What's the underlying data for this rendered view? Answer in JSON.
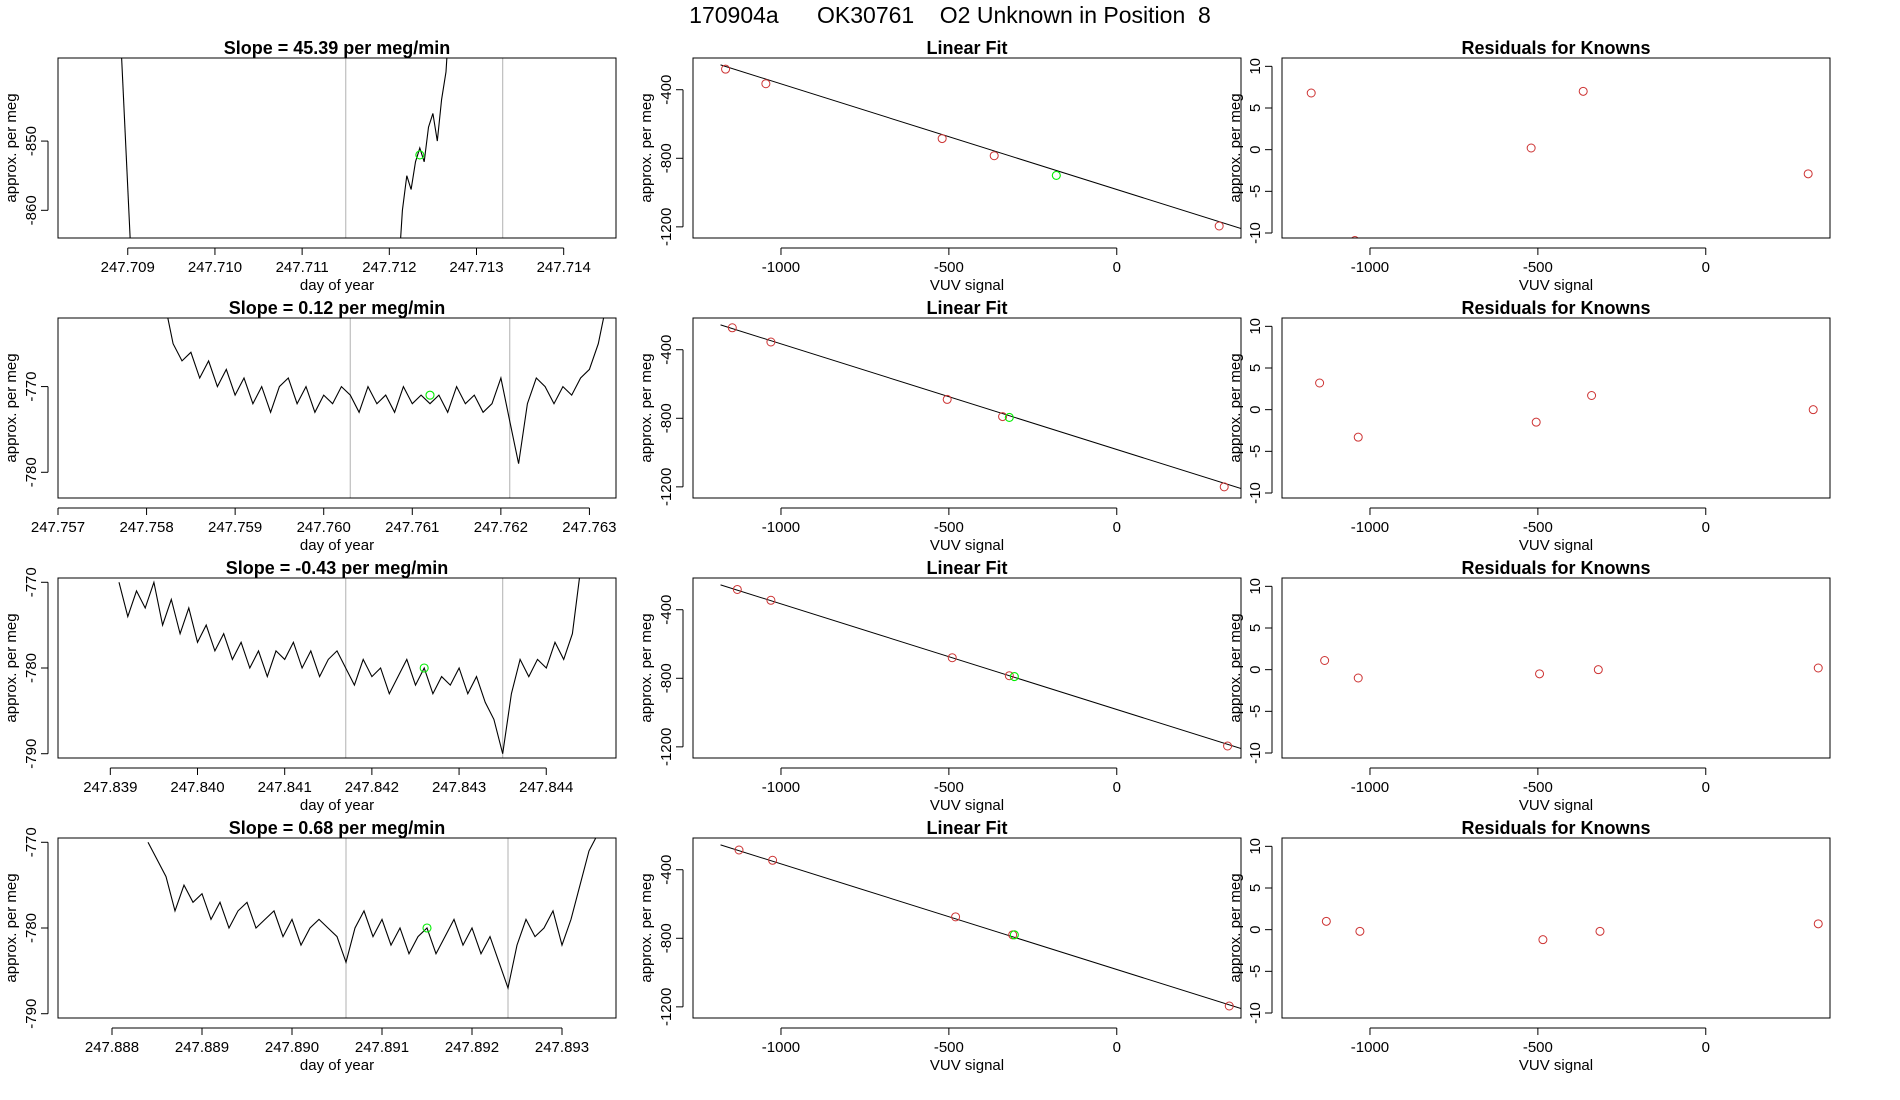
{
  "page": {
    "title": "170904a      OK30761    O2 Unknown in Position  8"
  },
  "colors": {
    "line": "#000000",
    "known": "#cd3333",
    "unknown": "#00ee00",
    "vline": "#bebebe"
  },
  "chart_data": [
    {
      "panel": "time-1",
      "type": "line",
      "title": "Slope =  45.39  per meg/min",
      "xlabel": "day of year",
      "ylabel": "approx. per meg",
      "xlim": [
        247.7082,
        247.7146
      ],
      "ylim": [
        -864,
        -838
      ],
      "xticks": [
        247.709,
        247.71,
        247.711,
        247.712,
        247.713,
        247.714
      ],
      "xtick_labels": [
        "247.709",
        "247.710",
        "247.711",
        "247.712",
        "247.713",
        "247.714"
      ],
      "yticks": [
        -850,
        -860
      ],
      "ytick_labels": [
        "-850",
        "-860"
      ],
      "vlines": [
        247.7115,
        247.7133
      ],
      "series": [
        {
          "x": [
            247.7089,
            247.70905
          ],
          "y": [
            -830,
            -870
          ]
        },
        {
          "x": [
            247.7121,
            247.71215,
            247.7122,
            247.71225,
            247.7123,
            247.71235,
            247.7124,
            247.71245,
            247.7125,
            247.71255,
            247.7126,
            247.71265,
            247.7127
          ],
          "y": [
            -870,
            -860,
            -855,
            -857,
            -853,
            -851,
            -853,
            -848,
            -846,
            -850,
            -844,
            -840,
            -830
          ]
        }
      ],
      "unknown_point": {
        "x": 247.71235,
        "y": -852
      }
    },
    {
      "panel": "fit-1",
      "type": "scatter",
      "title": "Linear Fit",
      "xlabel": "VUV signal",
      "ylabel": "approx. per meg",
      "xlim": [
        -1262,
        370
      ],
      "ylim": [
        -1265,
        -215
      ],
      "xticks": [
        -1000,
        -500,
        0
      ],
      "xtick_labels": [
        "-1000",
        "-500",
        "0"
      ],
      "yticks": [
        -400,
        -800,
        -1200
      ],
      "ytick_labels": [
        "-400",
        "-800",
        "-1200"
      ],
      "fit_line": {
        "x": [
          -1180,
          370
        ],
        "y": [
          -255,
          -1210
        ]
      },
      "known_points": {
        "x": [
          -1165,
          -1045,
          -520,
          -365,
          305
        ],
        "y": [
          -280,
          -365,
          -685,
          -785,
          -1195
        ]
      },
      "unknown_point": {
        "x": -180,
        "y": -900
      }
    },
    {
      "panel": "resid-1",
      "type": "scatter",
      "title": "Residuals for Knowns",
      "xlabel": "VUV signal",
      "ylabel": "approx. per meg",
      "xlim": [
        -1262,
        370
      ],
      "ylim": [
        -10.6,
        11
      ],
      "xticks": [
        -1000,
        -500,
        0
      ],
      "xtick_labels": [
        "-1000",
        "-500",
        "0"
      ],
      "yticks": [
        10,
        5,
        0,
        -5,
        -10
      ],
      "ytick_labels": [
        "10",
        "5",
        "0",
        "-5",
        "-10"
      ],
      "known_points": {
        "x": [
          -1175,
          -1045,
          -520,
          -365,
          305
        ],
        "y": [
          6.8,
          -10.9,
          0.2,
          7.0,
          -2.9
        ]
      }
    },
    {
      "panel": "time-2",
      "type": "line",
      "title": "Slope =  0.12  per meg/min",
      "xlabel": "day of year",
      "ylabel": "approx. per meg",
      "xlim": [
        247.757,
        247.7633
      ],
      "ylim": [
        -783,
        -762
      ],
      "xticks": [
        247.757,
        247.758,
        247.759,
        247.76,
        247.761,
        247.762,
        247.763
      ],
      "xtick_labels": [
        "247.757",
        "247.758",
        "247.759",
        "247.760",
        "247.761",
        "247.762",
        "247.763"
      ],
      "yticks": [
        -770,
        -780
      ],
      "ytick_labels": [
        "-770",
        "-780"
      ],
      "vlines": [
        247.7603,
        247.7621
      ],
      "series": [
        {
          "x": [
            247.7582,
            247.7583,
            247.7584,
            247.7585,
            247.7586,
            247.7587,
            247.7588,
            247.7589,
            247.759,
            247.7591,
            247.7592,
            247.7593,
            247.7594,
            247.7595,
            247.7596,
            247.7597,
            247.7598,
            247.7599,
            247.76,
            247.7601,
            247.7602,
            247.7603,
            247.7604,
            247.7605,
            247.7606,
            247.7607,
            247.7608,
            247.7609,
            247.761,
            247.7611,
            247.7612,
            247.7613,
            247.7614,
            247.7615,
            247.7616,
            247.7617,
            247.7618,
            247.7619,
            247.762,
            247.7621,
            247.7622,
            247.7623,
            247.7624,
            247.7625,
            247.7626,
            247.7627,
            247.7628,
            247.7629,
            247.763,
            247.7631,
            247.7632
          ],
          "y": [
            -760,
            -765,
            -767,
            -766,
            -769,
            -767,
            -770,
            -768,
            -771,
            -769,
            -772,
            -770,
            -773,
            -770,
            -769,
            -772,
            -770,
            -773,
            -771,
            -772,
            -770,
            -771,
            -773,
            -770,
            -772,
            -771,
            -773,
            -770,
            -772,
            -771,
            -772,
            -771,
            -773,
            -770,
            -772,
            -771,
            -773,
            -772,
            -769,
            -774,
            -779,
            -772,
            -769,
            -770,
            -772,
            -770,
            -771,
            -769,
            -768,
            -765,
            -760
          ]
        }
      ],
      "unknown_point": {
        "x": 247.7612,
        "y": -771
      }
    },
    {
      "panel": "fit-2",
      "type": "scatter",
      "title": "Linear Fit",
      "xlabel": "VUV signal",
      "ylabel": "approx. per meg",
      "xlim": [
        -1262,
        370
      ],
      "ylim": [
        -1265,
        -215
      ],
      "xticks": [
        -1000,
        -500,
        0
      ],
      "xtick_labels": [
        "-1000",
        "-500",
        "0"
      ],
      "yticks": [
        -400,
        -800,
        -1200
      ],
      "ytick_labels": [
        "-400",
        "-800",
        "-1200"
      ],
      "fit_line": {
        "x": [
          -1180,
          370
        ],
        "y": [
          -255,
          -1210
        ]
      },
      "known_points": {
        "x": [
          -1145,
          -1030,
          -505,
          -340,
          320
        ],
        "y": [
          -272,
          -355,
          -690,
          -790,
          -1200
        ]
      },
      "unknown_point": {
        "x": -320,
        "y": -795
      }
    },
    {
      "panel": "resid-2",
      "type": "scatter",
      "title": "Residuals for Knowns",
      "xlabel": "VUV signal",
      "ylabel": "approx. per meg",
      "xlim": [
        -1262,
        370
      ],
      "ylim": [
        -10.6,
        11
      ],
      "xticks": [
        -1000,
        -500,
        0
      ],
      "xtick_labels": [
        "-1000",
        "-500",
        "0"
      ],
      "yticks": [
        10,
        5,
        0,
        -5,
        -10
      ],
      "ytick_labels": [
        "10",
        "5",
        "0",
        "-5",
        "-10"
      ],
      "known_points": {
        "x": [
          -1150,
          -1035,
          -505,
          -340,
          320
        ],
        "y": [
          3.2,
          -3.3,
          -1.5,
          1.7,
          0.0
        ]
      }
    },
    {
      "panel": "time-3",
      "type": "line",
      "title": "Slope =  -0.43  per meg/min",
      "xlabel": "day of year",
      "ylabel": "approx. per meg",
      "xlim": [
        247.8384,
        247.8448
      ],
      "ylim": [
        -790.5,
        -769.5
      ],
      "xticks": [
        247.839,
        247.84,
        247.841,
        247.842,
        247.843,
        247.844
      ],
      "xtick_labels": [
        "247.839",
        "247.840",
        "247.841",
        "247.842",
        "247.843",
        "247.844"
      ],
      "yticks": [
        -770,
        -780,
        -790
      ],
      "ytick_labels": [
        "-770",
        "-780",
        "-790"
      ],
      "vlines": [
        247.8417,
        247.8435
      ],
      "series": [
        {
          "x": [
            247.8391,
            247.8392,
            247.8393,
            247.8394,
            247.8395,
            247.8396,
            247.8397,
            247.8398,
            247.8399,
            247.84,
            247.8401,
            247.8402,
            247.8403,
            247.8404,
            247.8405,
            247.8406,
            247.8407,
            247.8408,
            247.8409,
            247.841,
            247.8411,
            247.8412,
            247.8413,
            247.8414,
            247.8415,
            247.8416,
            247.8417,
            247.8418,
            247.8419,
            247.842,
            247.8421,
            247.8422,
            247.8423,
            247.8424,
            247.8425,
            247.8426,
            247.8427,
            247.8428,
            247.8429,
            247.843,
            247.8431,
            247.8432,
            247.8433,
            247.8434,
            247.8435,
            247.8436,
            247.8437,
            247.8438,
            247.8439,
            247.844,
            247.8441,
            247.8442,
            247.8443,
            247.8444
          ],
          "y": [
            -770,
            -774,
            -771,
            -773,
            -770,
            -775,
            -772,
            -776,
            -773,
            -777,
            -775,
            -778,
            -776,
            -779,
            -777,
            -780,
            -778,
            -781,
            -778,
            -779,
            -777,
            -780,
            -778,
            -781,
            -779,
            -778,
            -780,
            -782,
            -779,
            -781,
            -780,
            -783,
            -781,
            -779,
            -782,
            -780,
            -783,
            -781,
            -782,
            -780,
            -783,
            -781,
            -784,
            -786,
            -790,
            -783,
            -779,
            -781,
            -779,
            -780,
            -777,
            -779,
            -776,
            -768
          ]
        }
      ],
      "unknown_point": {
        "x": 247.8426,
        "y": -780
      }
    },
    {
      "panel": "fit-3",
      "type": "scatter",
      "title": "Linear Fit",
      "xlabel": "VUV signal",
      "ylabel": "approx. per meg",
      "xlim": [
        -1262,
        370
      ],
      "ylim": [
        -1265,
        -215
      ],
      "xticks": [
        -1000,
        -500,
        0
      ],
      "xtick_labels": [
        "-1000",
        "-500",
        "0"
      ],
      "yticks": [
        -400,
        -800,
        -1200
      ],
      "ytick_labels": [
        "-400",
        "-800",
        "-1200"
      ],
      "fit_line": {
        "x": [
          -1180,
          370
        ],
        "y": [
          -255,
          -1210
        ]
      },
      "known_points": {
        "x": [
          -1130,
          -1030,
          -490,
          -320,
          330
        ],
        "y": [
          -282,
          -345,
          -680,
          -785,
          -1195
        ]
      },
      "unknown_point": {
        "x": -305,
        "y": -790
      }
    },
    {
      "panel": "resid-3",
      "type": "scatter",
      "title": "Residuals for Knowns",
      "xlabel": "VUV signal",
      "ylabel": "approx. per meg",
      "xlim": [
        -1262,
        370
      ],
      "ylim": [
        -10.6,
        11
      ],
      "xticks": [
        -1000,
        -500,
        0
      ],
      "xtick_labels": [
        "-1000",
        "-500",
        "0"
      ],
      "yticks": [
        10,
        5,
        0,
        -5,
        -10
      ],
      "ytick_labels": [
        "10",
        "5",
        "0",
        "-5",
        "-10"
      ],
      "known_points": {
        "x": [
          -1135,
          -1035,
          -495,
          -320,
          335
        ],
        "y": [
          1.1,
          -1.0,
          -0.5,
          0.0,
          0.2
        ]
      }
    },
    {
      "panel": "time-4",
      "type": "line",
      "title": "Slope =  0.68  per meg/min",
      "xlabel": "day of year",
      "ylabel": "approx. per meg",
      "xlim": [
        247.8874,
        247.8936
      ],
      "ylim": [
        -790.5,
        -769.5
      ],
      "xticks": [
        247.888,
        247.889,
        247.89,
        247.891,
        247.892,
        247.893
      ],
      "xtick_labels": [
        "247.888",
        "247.889",
        "247.890",
        "247.891",
        "247.892",
        "247.893"
      ],
      "yticks": [
        -770,
        -780,
        -790
      ],
      "ytick_labels": [
        "-770",
        "-780",
        "-790"
      ],
      "vlines": [
        247.8906,
        247.8924
      ],
      "series": [
        {
          "x": [
            247.8884,
            247.8885,
            247.8886,
            247.8887,
            247.8888,
            247.8889,
            247.889,
            247.8891,
            247.8892,
            247.8893,
            247.8894,
            247.8895,
            247.8896,
            247.8897,
            247.8898,
            247.8899,
            247.89,
            247.8901,
            247.8902,
            247.8903,
            247.8904,
            247.8905,
            247.8906,
            247.8907,
            247.8908,
            247.8909,
            247.891,
            247.8911,
            247.8912,
            247.8913,
            247.8914,
            247.8915,
            247.8916,
            247.8917,
            247.8918,
            247.8919,
            247.892,
            247.8921,
            247.8922,
            247.8923,
            247.8924,
            247.8925,
            247.8926,
            247.8927,
            247.8928,
            247.8929,
            247.893,
            247.8931,
            247.8932,
            247.8933,
            247.8934
          ],
          "y": [
            -770,
            -772,
            -774,
            -778,
            -775,
            -777,
            -776,
            -779,
            -777,
            -780,
            -778,
            -777,
            -780,
            -779,
            -778,
            -781,
            -779,
            -782,
            -780,
            -779,
            -780,
            -781,
            -784,
            -780,
            -778,
            -781,
            -779,
            -782,
            -780,
            -783,
            -781,
            -780,
            -783,
            -781,
            -779,
            -782,
            -780,
            -783,
            -781,
            -784,
            -787,
            -782,
            -779,
            -781,
            -780,
            -778,
            -782,
            -779,
            -775,
            -771,
            -769
          ]
        }
      ],
      "unknown_point": {
        "x": 247.8915,
        "y": -780
      }
    },
    {
      "panel": "fit-4",
      "type": "scatter",
      "title": "Linear Fit",
      "xlabel": "VUV signal",
      "ylabel": "approx. per meg",
      "xlim": [
        -1262,
        370
      ],
      "ylim": [
        -1265,
        -215
      ],
      "xticks": [
        -1000,
        -500,
        0
      ],
      "xtick_labels": [
        "-1000",
        "-500",
        "0"
      ],
      "yticks": [
        -400,
        -800,
        -1200
      ],
      "ytick_labels": [
        "-400",
        "-800",
        "-1200"
      ],
      "fit_line": {
        "x": [
          -1180,
          370
        ],
        "y": [
          -255,
          -1210
        ]
      },
      "known_points": {
        "x": [
          -1125,
          -1025,
          -480,
          -310,
          335
        ],
        "y": [
          -285,
          -345,
          -675,
          -780,
          -1195
        ]
      },
      "unknown_point": {
        "x": -305,
        "y": -780
      }
    },
    {
      "panel": "resid-4",
      "type": "scatter",
      "title": "Residuals for Knowns",
      "xlabel": "VUV signal",
      "ylabel": "approx. per meg",
      "xlim": [
        -1262,
        370
      ],
      "ylim": [
        -10.6,
        11
      ],
      "xticks": [
        -1000,
        -500,
        0
      ],
      "xtick_labels": [
        "-1000",
        "-500",
        "0"
      ],
      "yticks": [
        10,
        5,
        0,
        -5,
        -10
      ],
      "ytick_labels": [
        "10",
        "5",
        "0",
        "-5",
        "-10"
      ],
      "known_points": {
        "x": [
          -1130,
          -1030,
          -485,
          -315,
          335
        ],
        "y": [
          1.0,
          -0.2,
          -1.2,
          -0.2,
          0.7
        ]
      }
    }
  ]
}
